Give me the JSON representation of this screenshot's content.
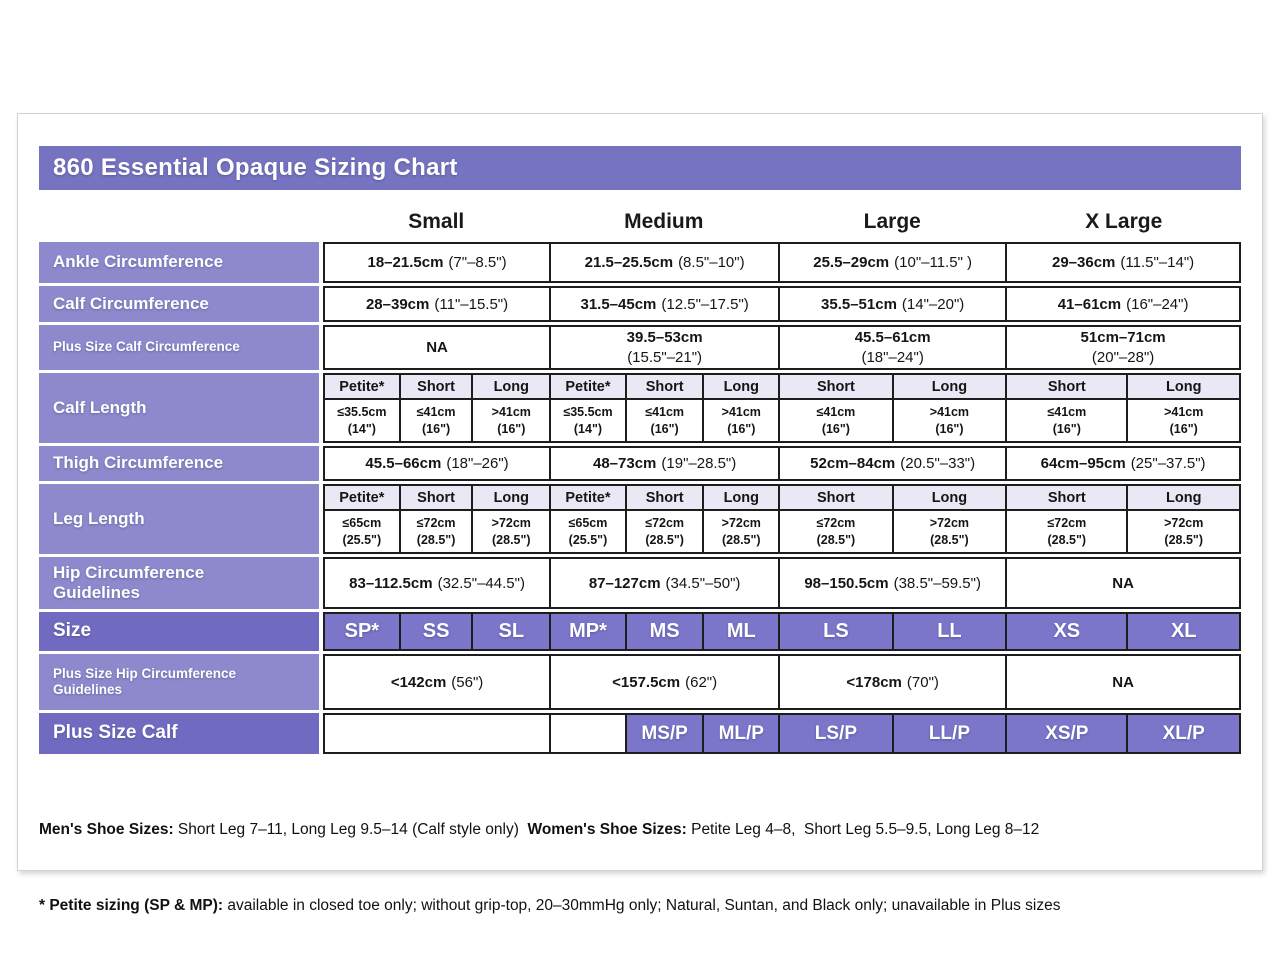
{
  "title": "860 Essential Opaque Sizing Chart",
  "colors": {
    "title_bar": "#7673C1",
    "label_light": "#8D89CC",
    "label_dark": "#706BC0",
    "size_cell": "#7B76CA",
    "subheader_bg": "#E9E8F4",
    "border_dark": "#1d1d1d"
  },
  "size_headers": [
    "Small",
    "Medium",
    "Large",
    "X Large"
  ],
  "table": {
    "ankle": {
      "label": "Ankle Circumference",
      "values": [
        {
          "cm": "18–21.5cm",
          "in": "(7\"–8.5\")"
        },
        {
          "cm": "21.5–25.5cm",
          "in": "(8.5\"–10\")"
        },
        {
          "cm": "25.5–29cm",
          "in": "(10\"–11.5\" )"
        },
        {
          "cm": "29–36cm",
          "in": "(11.5\"–14\")"
        }
      ]
    },
    "calf": {
      "label": "Calf Circumference",
      "values": [
        {
          "cm": "28–39cm",
          "in": "(11\"–15.5\")"
        },
        {
          "cm": "31.5–45cm",
          "in": "(12.5\"–17.5\")"
        },
        {
          "cm": "35.5–51cm",
          "in": "(14\"–20\")"
        },
        {
          "cm": "41–61cm",
          "in": "(16\"–24\")"
        }
      ]
    },
    "plus_calf_circ": {
      "label": "Plus Size Calf Circumference",
      "values": [
        {
          "cm": "NA",
          "in": ""
        },
        {
          "cm": "39.5–53cm",
          "in": "(15.5\"–21\")"
        },
        {
          "cm": "45.5–61cm",
          "in": "(18\"–24\")"
        },
        {
          "cm": "51cm–71cm",
          "in": "(20\"–28\")"
        }
      ]
    },
    "calf_length": {
      "label": "Calf Length",
      "subheaders": [
        "Petite*",
        "Short",
        "Long",
        "Petite*",
        "Short",
        "Long",
        "Short",
        "Long",
        "Short",
        "Long"
      ],
      "values": [
        {
          "l1": "≤35.5cm",
          "l2": "(14\")"
        },
        {
          "l1": "≤41cm",
          "l2": "(16\")"
        },
        {
          "l1": ">41cm",
          "l2": "(16\")"
        },
        {
          "l1": "≤35.5cm",
          "l2": "(14\")"
        },
        {
          "l1": "≤41cm",
          "l2": "(16\")"
        },
        {
          "l1": ">41cm",
          "l2": "(16\")"
        },
        {
          "l1": "≤41cm",
          "l2": "(16\")"
        },
        {
          "l1": ">41cm",
          "l2": "(16\")"
        },
        {
          "l1": "≤41cm",
          "l2": "(16\")"
        },
        {
          "l1": ">41cm",
          "l2": "(16\")"
        }
      ]
    },
    "thigh": {
      "label": "Thigh Circumference",
      "values": [
        {
          "cm": "45.5–66cm",
          "in": "(18\"–26\")"
        },
        {
          "cm": "48–73cm",
          "in": "(19\"–28.5\")"
        },
        {
          "cm": "52cm–84cm",
          "in": "(20.5\"–33\")"
        },
        {
          "cm": "64cm–95cm",
          "in": "(25\"–37.5\")"
        }
      ]
    },
    "leg_length": {
      "label": "Leg Length",
      "subheaders": [
        "Petite*",
        "Short",
        "Long",
        "Petite*",
        "Short",
        "Long",
        "Short",
        "Long",
        "Short",
        "Long"
      ],
      "values": [
        {
          "l1": "≤65cm",
          "l2": "(25.5\")"
        },
        {
          "l1": "≤72cm",
          "l2": "(28.5\")"
        },
        {
          "l1": ">72cm",
          "l2": "(28.5\")"
        },
        {
          "l1": "≤65cm",
          "l2": "(25.5\")"
        },
        {
          "l1": "≤72cm",
          "l2": "(28.5\")"
        },
        {
          "l1": ">72cm",
          "l2": "(28.5\")"
        },
        {
          "l1": "≤72cm",
          "l2": "(28.5\")"
        },
        {
          "l1": ">72cm",
          "l2": "(28.5\")"
        },
        {
          "l1": "≤72cm",
          "l2": "(28.5\")"
        },
        {
          "l1": ">72cm",
          "l2": "(28.5\")"
        }
      ]
    },
    "hip": {
      "label": "Hip Circumference Guidelines",
      "values": [
        {
          "cm": "83–112.5cm",
          "in": "(32.5\"–44.5\")"
        },
        {
          "cm": "87–127cm",
          "in": "(34.5\"–50\")"
        },
        {
          "cm": "98–150.5cm",
          "in": "(38.5\"–59.5\")"
        },
        {
          "cm": "NA",
          "in": ""
        }
      ]
    },
    "size": {
      "label": "Size",
      "cells": [
        "SP*",
        "SS",
        "SL",
        "MP*",
        "MS",
        "ML",
        "LS",
        "LL",
        "XS",
        "XL"
      ]
    },
    "plus_hip": {
      "label": "Plus Size Hip Circumference Guidelines",
      "values": [
        {
          "cm": "<142cm",
          "in": "(56\")"
        },
        {
          "cm": "<157.5cm",
          "in": "(62\")"
        },
        {
          "cm": "<178cm",
          "in": "(70\")"
        },
        {
          "cm": "NA",
          "in": ""
        }
      ]
    },
    "plus_size_calf": {
      "label": "Plus Size Calf",
      "cells": [
        "MS/P",
        "ML/P",
        "LS/P",
        "LL/P",
        "XS/P",
        "XL/P"
      ]
    }
  },
  "footer": {
    "line1_b1": "Men's Shoe Sizes:",
    "line1_t1": " Short Leg 7–11, Long Leg 9.5–14 (Calf style only)  ",
    "line1_b2": "Women's Shoe Sizes:",
    "line1_t2": " Petite Leg 4–8,  Short Leg 5.5–9.5, Long Leg 8–12",
    "line2_b": "* Petite sizing (SP & MP):",
    "line2_t": " available in closed toe only; without grip-top, 20–30mmHg only; Natural, Suntan, and Black only; unavailable in Plus sizes"
  }
}
